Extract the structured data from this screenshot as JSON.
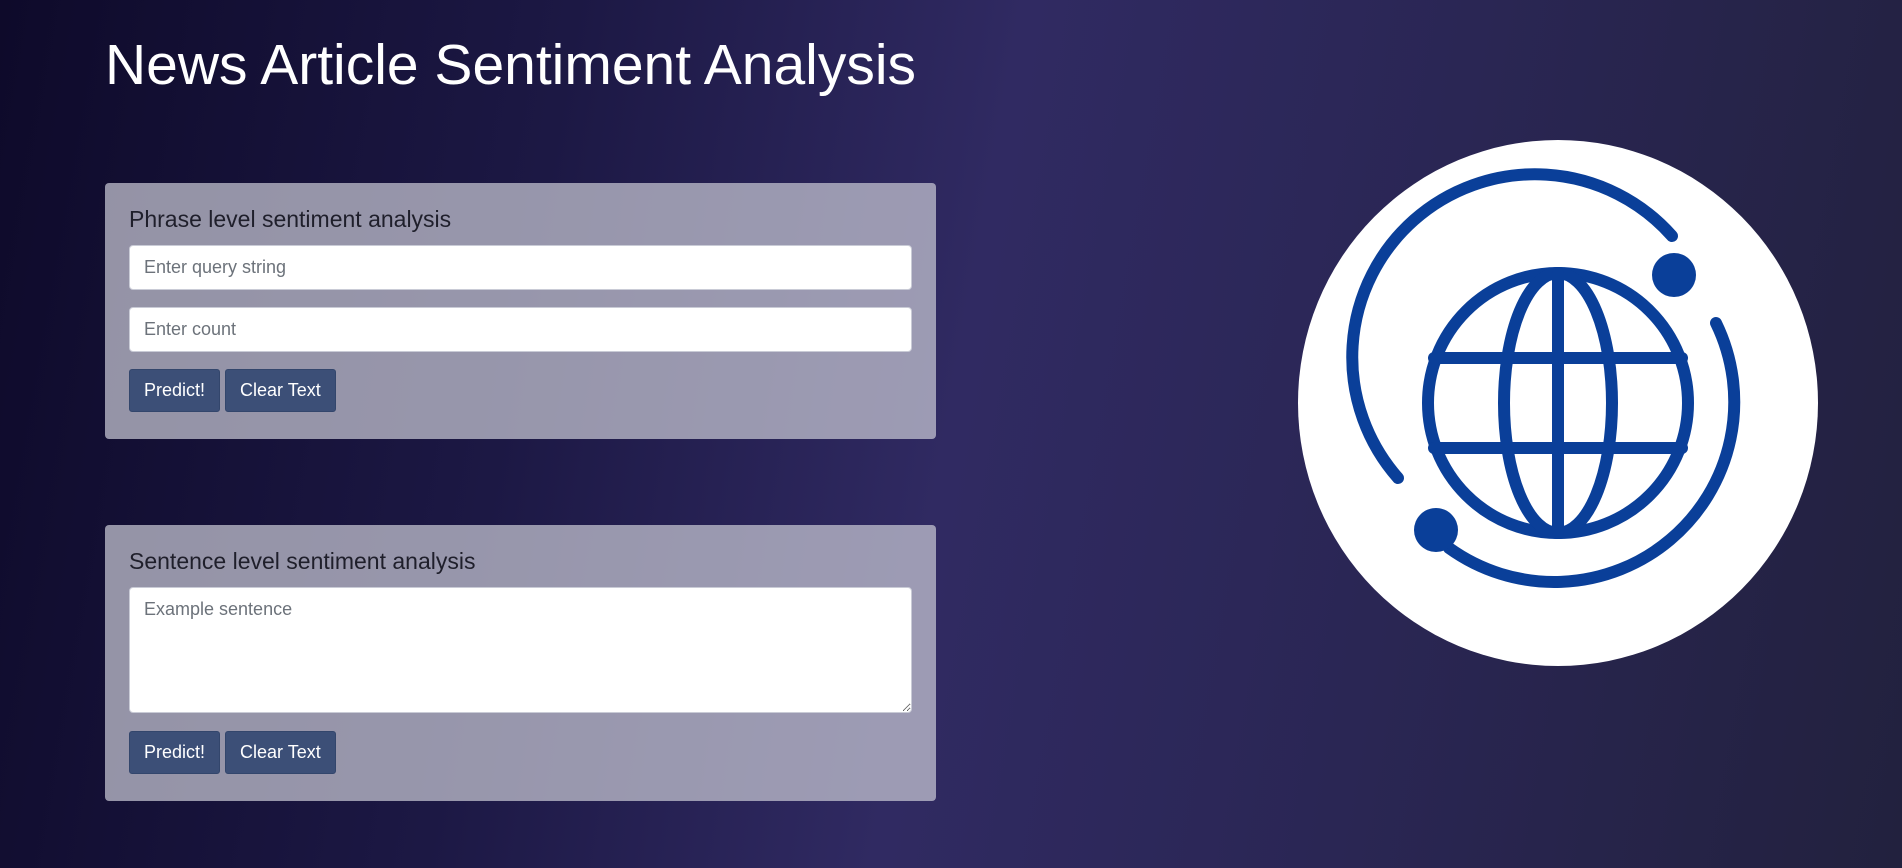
{
  "header": {
    "title": "News Article Sentiment Analysis"
  },
  "phrase_card": {
    "title": "Phrase level sentiment analysis",
    "query_placeholder": "Enter query string",
    "count_placeholder": "Enter count",
    "predict_label": "Predict!",
    "clear_label": "Clear Text"
  },
  "sentence_card": {
    "title": "Sentence level sentiment analysis",
    "sentence_placeholder": "Example sentence",
    "predict_label": "Predict!",
    "clear_label": "Clear Text"
  },
  "logo": {
    "icon": "globe-icon",
    "color": "#0a3f99",
    "background": "#ffffff"
  }
}
